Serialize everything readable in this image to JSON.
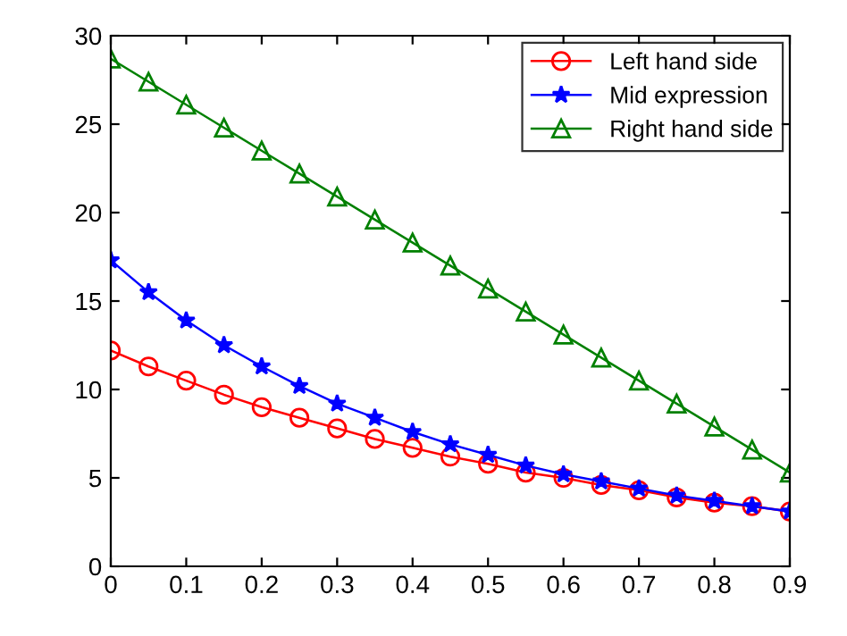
{
  "chart_data": {
    "type": "line",
    "x": [
      0,
      0.05,
      0.1,
      0.15,
      0.2,
      0.25,
      0.3,
      0.35,
      0.4,
      0.45,
      0.5,
      0.55,
      0.6,
      0.65,
      0.7,
      0.75,
      0.8,
      0.85,
      0.9
    ],
    "series": [
      {
        "name": "Left hand side",
        "color": "#ff0000",
        "marker": "circle",
        "values": [
          12.2,
          11.3,
          10.5,
          9.7,
          9.0,
          8.4,
          7.8,
          7.2,
          6.7,
          6.2,
          5.8,
          5.3,
          5.0,
          4.6,
          4.3,
          3.9,
          3.6,
          3.4,
          3.1
        ]
      },
      {
        "name": "Mid expression",
        "color": "#0000ff",
        "marker": "star",
        "values": [
          17.3,
          15.5,
          13.9,
          12.5,
          11.3,
          10.2,
          9.2,
          8.4,
          7.6,
          6.9,
          6.3,
          5.7,
          5.2,
          4.8,
          4.4,
          4.0,
          3.7,
          3.4,
          3.1
        ]
      },
      {
        "name": "Right hand side",
        "color": "#008000",
        "marker": "triangle",
        "values": [
          28.7,
          27.4,
          26.1,
          24.8,
          23.5,
          22.2,
          20.9,
          19.6,
          18.3,
          17.0,
          15.7,
          14.4,
          13.1,
          11.8,
          10.5,
          9.2,
          7.9,
          6.6,
          5.3
        ]
      }
    ],
    "xlim": [
      0,
      0.9
    ],
    "xticks": [
      0,
      0.1,
      0.2,
      0.3,
      0.4,
      0.5,
      0.6,
      0.7,
      0.8,
      0.9
    ],
    "ylim": [
      0,
      30
    ],
    "yticks": [
      0,
      5,
      10,
      15,
      20,
      25,
      30
    ],
    "grid": false,
    "legend": "top right",
    "line_style": "solid"
  }
}
